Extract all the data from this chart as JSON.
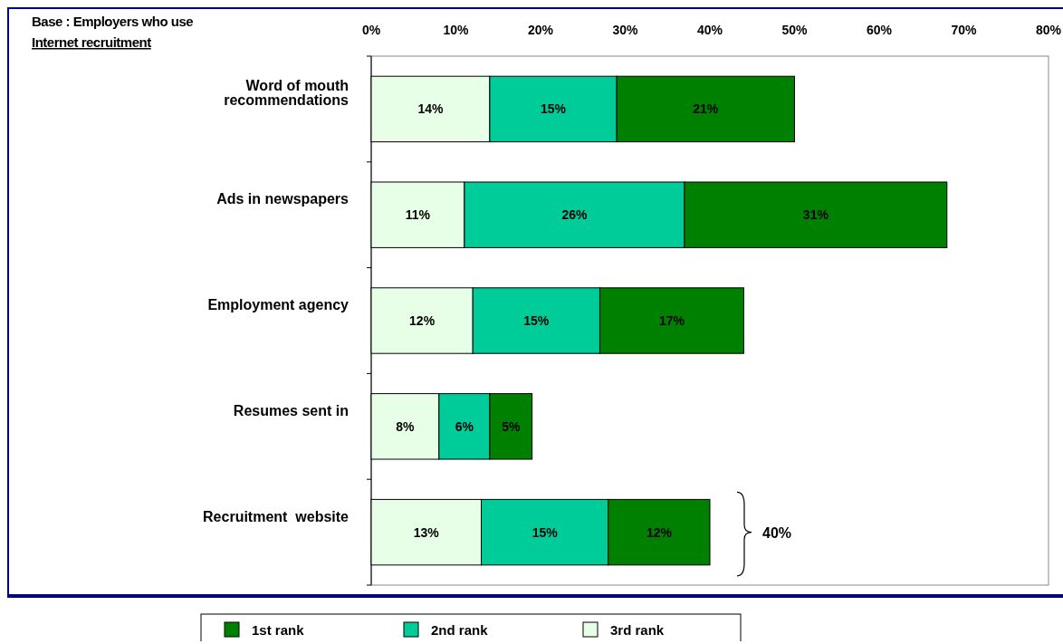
{
  "chart_data": {
    "type": "bar",
    "orientation": "horizontal",
    "stacked": true,
    "categories": [
      "Word of mouth\nrecommendations",
      "Ads in newspapers",
      "Employment agency",
      "Resumes sent in",
      "Recruitment  website"
    ],
    "series": [
      {
        "name": "3rd rank",
        "color": "#e6ffe6",
        "values": [
          14,
          11,
          12,
          8,
          13
        ],
        "value_labels": [
          "14%",
          "11%",
          "12%",
          "8%",
          "13%"
        ]
      },
      {
        "name": "2nd rank",
        "color": "#00cc99",
        "values": [
          15,
          26,
          15,
          6,
          15
        ],
        "value_labels": [
          "15%",
          "26%",
          "15%",
          "6%",
          "15%"
        ]
      },
      {
        "name": "1st rank",
        "color": "#008000",
        "values": [
          21,
          31,
          17,
          5,
          12
        ],
        "value_labels": [
          "21%",
          "31%",
          "17%",
          "5%",
          "12%"
        ]
      }
    ],
    "xlim": [
      0,
      80
    ],
    "xticks": [
      {
        "value": 0,
        "label": "0%"
      },
      {
        "value": 10,
        "label": "10%"
      },
      {
        "value": 20,
        "label": "20%"
      },
      {
        "value": 30,
        "label": "30%"
      },
      {
        "value": 40,
        "label": "40%"
      },
      {
        "value": 50,
        "label": "50%"
      },
      {
        "value": 60,
        "label": "60%"
      },
      {
        "value": 70,
        "label": "70%"
      },
      {
        "value": 80,
        "label": "80%"
      }
    ],
    "legend": "bottom",
    "grid": false,
    "annotations": [
      "Base : Employers who use",
      "Internet recruitment",
      "40%"
    ]
  }
}
